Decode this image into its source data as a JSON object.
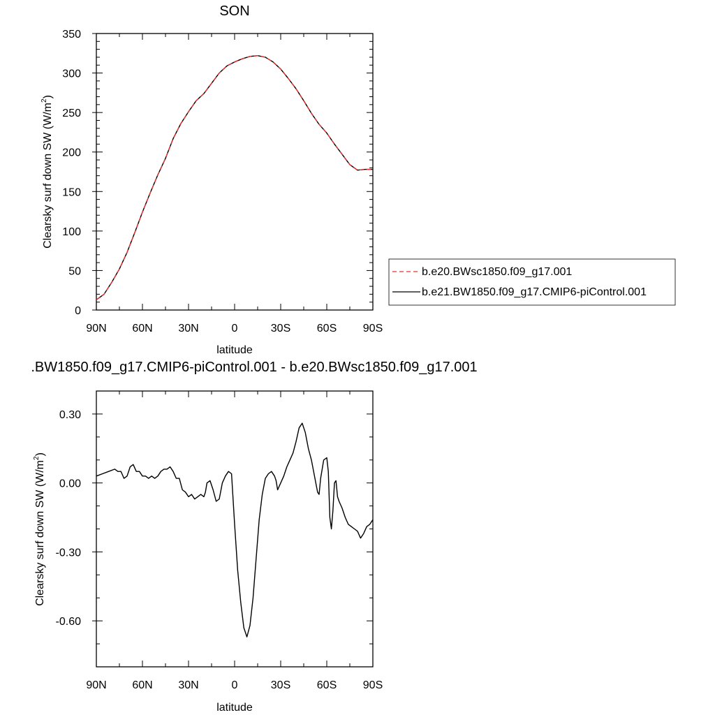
{
  "chart_data": [
    {
      "type": "line",
      "title": "SON",
      "xlabel": "latitude",
      "ylabel": "Clearsky surf down SW (W/m",
      "ylabel_sup": "2",
      "ylabel_tail": ")",
      "xlim": [
        -90,
        90
      ],
      "ylim": [
        0,
        350
      ],
      "x_ticks": [
        -90,
        -60,
        -30,
        0,
        30,
        60,
        90
      ],
      "x_tick_labels": [
        "90N",
        "60N",
        "30N",
        "0",
        "30S",
        "60S",
        "90S"
      ],
      "y_ticks": [
        0,
        50,
        100,
        150,
        200,
        250,
        300,
        350
      ],
      "y_tick_labels": [
        "0",
        "50",
        "100",
        "150",
        "200",
        "250",
        "300",
        "350"
      ],
      "grid": false,
      "legend_position": "right",
      "series": [
        {
          "name": "b.e20.BWsc1850.f09_g17.001",
          "color": "#e8302e",
          "dash": true,
          "x": [
            -90,
            -85,
            -80,
            -75,
            -70,
            -65,
            -60,
            -55,
            -50,
            -45,
            -40,
            -35,
            -30,
            -25,
            -20,
            -15,
            -10,
            -5,
            0,
            5,
            10,
            15,
            20,
            25,
            30,
            35,
            40,
            45,
            50,
            55,
            60,
            65,
            70,
            75,
            80,
            85,
            90
          ],
          "values": [
            13,
            20,
            35,
            52,
            73,
            98,
            124,
            148,
            171,
            192,
            217,
            236,
            251,
            265,
            274,
            287,
            300,
            309,
            314,
            318,
            321,
            322,
            320,
            314,
            305,
            293,
            280,
            265,
            249,
            235,
            224,
            210,
            197,
            184,
            177,
            178,
            178
          ]
        },
        {
          "name": "b.e21.BW1850.f09_g17.CMIP6-piControl.001",
          "color": "#000000",
          "dash": false,
          "x": [
            -90,
            -85,
            -80,
            -75,
            -70,
            -65,
            -60,
            -55,
            -50,
            -45,
            -40,
            -35,
            -30,
            -25,
            -20,
            -15,
            -10,
            -5,
            0,
            5,
            10,
            15,
            20,
            25,
            30,
            35,
            40,
            45,
            50,
            55,
            60,
            65,
            70,
            75,
            80,
            85,
            90
          ],
          "values": [
            13,
            20,
            35,
            52,
            73,
            98,
            124,
            148,
            171,
            192,
            217,
            236,
            251,
            265,
            274,
            287,
            300,
            309,
            314,
            318,
            321,
            322,
            320,
            314,
            305,
            293,
            280,
            265,
            249,
            235,
            224,
            210,
            197,
            184,
            177,
            178,
            178
          ]
        }
      ]
    },
    {
      "type": "line",
      "title": ".BW1850.f09_g17.CMIP6-piControl.001 - b.e20.BWsc1850.f09_g17.001",
      "xlabel": "latitude",
      "ylabel": "Clearsky surf down SW (W/m",
      "ylabel_sup": "2",
      "ylabel_tail": ")",
      "xlim": [
        -90,
        90
      ],
      "ylim": [
        -0.8,
        0.4
      ],
      "x_ticks": [
        -90,
        -60,
        -30,
        0,
        30,
        60,
        90
      ],
      "x_tick_labels": [
        "90N",
        "60N",
        "30N",
        "0",
        "30S",
        "60S",
        "90S"
      ],
      "y_ticks": [
        -0.6,
        -0.3,
        0.0,
        0.3
      ],
      "y_tick_labels": [
        "-0.60",
        "-0.30",
        "0.00",
        "0.30"
      ],
      "grid": false,
      "series": [
        {
          "color": "#000000",
          "x": [
            -90,
            -86,
            -82,
            -78,
            -76,
            -74,
            -72,
            -70,
            -68,
            -66,
            -64,
            -62,
            -60,
            -58,
            -56,
            -54,
            -52,
            -50,
            -48,
            -46,
            -44,
            -42,
            -40,
            -38,
            -36,
            -34,
            -32,
            -30,
            -28,
            -26,
            -24,
            -22,
            -20,
            -19,
            -18,
            -16,
            -14,
            -12,
            -10,
            -8,
            -6,
            -4,
            -2,
            0,
            2,
            4,
            6,
            8,
            10,
            12,
            14,
            16,
            18,
            20,
            22,
            24,
            26,
            27,
            28,
            30,
            32,
            34,
            36,
            38,
            40,
            42,
            44,
            46,
            48,
            50,
            52,
            54,
            55,
            56,
            58,
            60,
            61,
            62,
            63,
            64,
            65,
            66,
            67,
            68,
            70,
            72,
            74,
            76,
            78,
            80,
            82,
            84,
            86,
            88,
            90
          ],
          "values": [
            0.03,
            0.04,
            0.05,
            0.06,
            0.05,
            0.05,
            0.02,
            0.03,
            0.07,
            0.08,
            0.05,
            0.05,
            0.03,
            0.03,
            0.02,
            0.03,
            0.02,
            0.03,
            0.05,
            0.06,
            0.06,
            0.07,
            0.05,
            0.02,
            0.02,
            -0.03,
            -0.04,
            -0.06,
            -0.05,
            -0.07,
            -0.06,
            -0.05,
            -0.06,
            -0.04,
            0.0,
            0.01,
            -0.03,
            -0.08,
            -0.07,
            0.0,
            0.03,
            0.05,
            0.04,
            -0.18,
            -0.38,
            -0.52,
            -0.63,
            -0.67,
            -0.62,
            -0.5,
            -0.33,
            -0.16,
            -0.05,
            0.02,
            0.04,
            0.05,
            0.03,
            0.01,
            -0.03,
            0.0,
            0.03,
            0.07,
            0.1,
            0.13,
            0.18,
            0.24,
            0.26,
            0.22,
            0.15,
            0.1,
            0.03,
            -0.04,
            -0.05,
            0.02,
            0.1,
            0.11,
            0.05,
            -0.15,
            -0.2,
            -0.12,
            0.0,
            0.01,
            -0.06,
            -0.08,
            -0.11,
            -0.15,
            -0.18,
            -0.19,
            -0.2,
            -0.21,
            -0.24,
            -0.22,
            -0.19,
            -0.18,
            -0.16
          ]
        }
      ]
    }
  ]
}
